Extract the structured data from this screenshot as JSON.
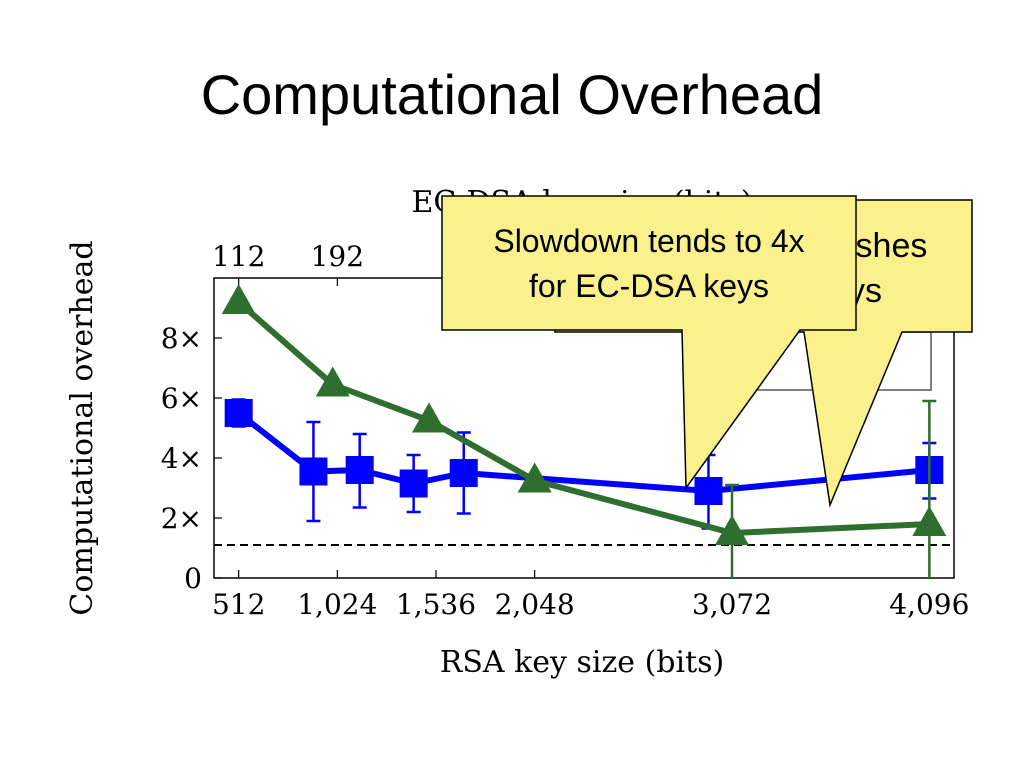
{
  "slide": {
    "title": "Computational Overhead"
  },
  "chart_data": {
    "type": "line",
    "ylabel": "Computational overhead",
    "xlabel": "RSA key size (bits)",
    "x2label": "EC-DSA key size (bits)",
    "xlim": [
      384,
      4224
    ],
    "ylim": [
      0,
      10
    ],
    "x_ticks": [
      {
        "value": 512,
        "label": "512"
      },
      {
        "value": 1024,
        "label": "1,024"
      },
      {
        "value": 1536,
        "label": "1,536"
      },
      {
        "value": 2048,
        "label": "2,048"
      },
      {
        "value": 3072,
        "label": "3,072"
      },
      {
        "value": 4096,
        "label": "4,096"
      }
    ],
    "x2_ticks": [
      {
        "value": 512,
        "label": "112"
      },
      {
        "value": 1024,
        "label": "192"
      }
    ],
    "y_ticks": [
      {
        "value": 0,
        "label": "0"
      },
      {
        "value": 2,
        "label": "2×"
      },
      {
        "value": 4,
        "label": "4×"
      },
      {
        "value": 6,
        "label": "6×"
      },
      {
        "value": 8,
        "label": "8×"
      }
    ],
    "reference_line": 1.1,
    "series": [
      {
        "color": "#0000ff",
        "marker": "square",
        "points": [
          {
            "x": 512,
            "y": 5.5,
            "lo": 5.05,
            "hi": 5.95
          },
          {
            "x": 900,
            "y": 3.55,
            "lo": 1.9,
            "hi": 5.2
          },
          {
            "x": 1140,
            "y": 3.6,
            "lo": 2.35,
            "hi": 4.8
          },
          {
            "x": 1420,
            "y": 3.15,
            "lo": 2.2,
            "hi": 4.1
          },
          {
            "x": 1680,
            "y": 3.5,
            "lo": 2.15,
            "hi": 4.85
          },
          {
            "x": 2950,
            "y": 2.9,
            "lo": 1.65,
            "hi": 4.1
          },
          {
            "x": 4096,
            "y": 3.6,
            "lo": 2.65,
            "hi": 4.5
          }
        ]
      },
      {
        "color": "#2e6e2e",
        "marker": "triangle",
        "points": [
          {
            "x": 512,
            "y": 9.2
          },
          {
            "x": 1000,
            "y": 6.45
          },
          {
            "x": 1500,
            "y": 5.25
          },
          {
            "x": 2048,
            "y": 3.25
          },
          {
            "x": 3072,
            "y": 1.5,
            "lo": -0.1,
            "hi": 3.1
          },
          {
            "x": 4096,
            "y": 1.8,
            "lo": -0.1,
            "hi": 5.9
          }
        ]
      }
    ]
  },
  "callouts": {
    "front": {
      "line1": "Slowdown tends to 4x",
      "line2": "for EC-DSA keys"
    },
    "back": {
      "line1": "ishes",
      "line2": "ys"
    }
  }
}
